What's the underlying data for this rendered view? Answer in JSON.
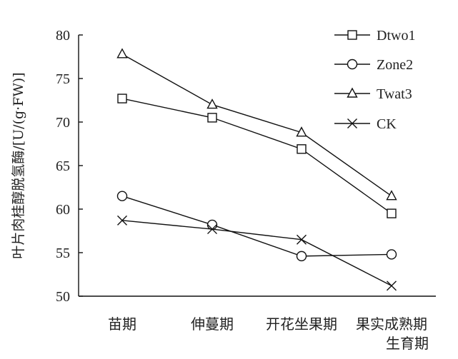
{
  "chart_data": {
    "type": "line",
    "categories": [
      "苗期",
      "伸蔓期",
      "开花坐果期",
      "果实成熟期"
    ],
    "series": [
      {
        "name": "Dtwo1",
        "marker": "square",
        "values": [
          72.7,
          70.5,
          66.9,
          59.5
        ]
      },
      {
        "name": "Zone2",
        "marker": "circle",
        "values": [
          61.5,
          58.2,
          54.6,
          54.8
        ]
      },
      {
        "name": "Twat3",
        "marker": "triangle",
        "values": [
          77.8,
          72.0,
          68.8,
          61.5
        ]
      },
      {
        "name": "CK",
        "marker": "x",
        "values": [
          58.7,
          57.7,
          56.5,
          51.2
        ]
      }
    ],
    "xlabel": "生育期",
    "ylabel": "叶片肉桂醇脱氢酶/[U/(g·FW)]",
    "ylim": [
      50,
      80
    ],
    "yticks": [
      50,
      55,
      60,
      65,
      70,
      75,
      80
    ],
    "legend_position": "top-right",
    "grid": false,
    "colors": {
      "line": "#111111",
      "background": "#ffffff"
    }
  }
}
